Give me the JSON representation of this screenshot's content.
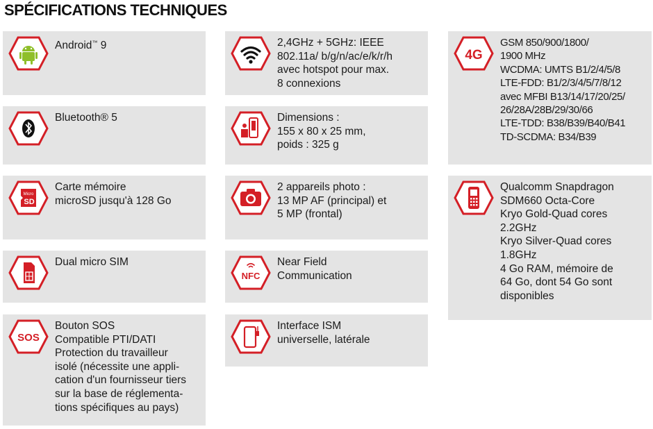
{
  "title": "SPÉCIFICATIONS TECHNIQUES",
  "colors": {
    "accent": "#d41f26",
    "card_bg": "#e4e4e4",
    "text": "#1a1a1a"
  },
  "specs": [
    {
      "icon": "android-icon",
      "text": "Android",
      "mark": "™",
      "suffix": " 9"
    },
    {
      "icon": "bluetooth-icon",
      "text": "Bluetooth® 5"
    },
    {
      "icon": "microsd-icon",
      "text": "Carte mémoire\nmicroSD jusqu'à 128 Go",
      "icon_label_top": "Micro",
      "icon_label_bottom": "SD"
    },
    {
      "icon": "sim-card-icon",
      "text": "Dual micro SIM"
    },
    {
      "icon": "sos-icon",
      "text": "Bouton SOS\nCompatible PTI/DATI\nProtection du travailleur\nisolé (nécessite une appli-\ncation d'un fournisseur tiers\nsur la base de réglementa-\ntions spécifiques au pays)",
      "icon_label": "SOS"
    },
    {
      "icon": "wifi-icon",
      "text": "2,4GHz + 5GHz: IEEE\n802.11a/ b/g/n/ac/e/k/r/h\navec hotspot pour max.\n8 connexions"
    },
    {
      "icon": "dimensions-icon",
      "text": "Dimensions :\n155 x 80 x 25 mm,\npoids : 325 g"
    },
    {
      "icon": "camera-icon",
      "text": "2 appareils photo :\n13 MP AF (principal) et\n5 MP (frontal)"
    },
    {
      "icon": "nfc-icon",
      "text": "Near Field\nCommunication",
      "icon_label": "NFC"
    },
    {
      "icon": "ism-interface-icon",
      "text": "Interface ISM\nuniverselle, latérale"
    },
    {
      "icon": "4g-icon",
      "text": "GSM 850/900/1800/\n1900 MHz\nWCDMA: UMTS B1/2/4/5/8\nLTE-FDD: B1/2/3/4/5/7/8/12\navec MFBI B13/14/17/20/25/\n26/28A/28B/29/30/66\nLTE-TDD: B38/B39/B40/B41\nTD-SCDMA: B34/B39",
      "icon_label": "4G"
    },
    {
      "icon": "processor-phone-icon",
      "text": "Qualcomm Snapdragon\nSDM660 Octa-Core\nKryo Gold-Quad cores\n2.2GHz\nKryo Silver-Quad cores\n1.8GHz\n4 Go RAM, mémoire de\n64 Go, dont 54 Go sont\ndisponibles"
    }
  ]
}
